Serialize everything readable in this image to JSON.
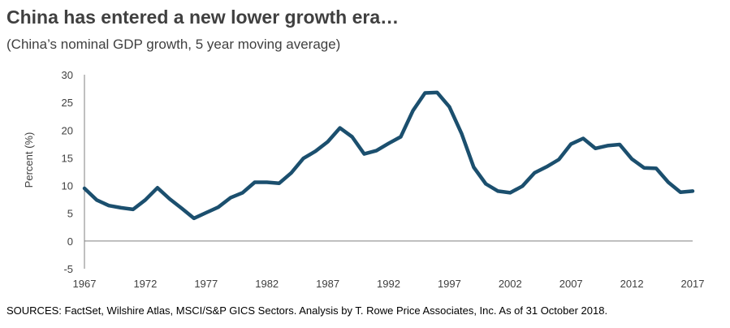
{
  "title": "China has entered a new lower growth era…",
  "subtitle": "(China’s nominal GDP growth, 5 year moving average)",
  "source": "SOURCES: FactSet, Wilshire Atlas, MSCI/S&P GICS Sectors. Analysis by T. Rowe Price Associates, Inc. As of 31 October 2018.",
  "chart_data": {
    "type": "line",
    "title": "China has entered a new lower growth era…",
    "subtitle": "(China’s nominal GDP growth, 5 year moving average)",
    "ylabel": "Percent (%)",
    "xlabel": "",
    "xlim": [
      1967,
      2017
    ],
    "ylim": [
      -5,
      30
    ],
    "y_ticks": [
      "-5",
      "0",
      "5",
      "10",
      "15",
      "20",
      "25",
      "30"
    ],
    "x_ticks": [
      "1967",
      "1972",
      "1977",
      "1982",
      "1987",
      "1992",
      "1997",
      "2002",
      "2007",
      "2012",
      "2017"
    ],
    "grid": false,
    "line_color": "#1b4f6e",
    "series": [
      {
        "x": [
          1967,
          1968,
          1969,
          1970,
          1971,
          1972,
          1973,
          1974,
          1975,
          1976,
          1977,
          1978,
          1979,
          1980,
          1981,
          1982,
          1983,
          1984,
          1985,
          1986,
          1987,
          1988,
          1989,
          1990,
          1991,
          1992,
          1993,
          1994,
          1995,
          1996,
          1997,
          1998,
          1999,
          2000,
          2001,
          2002,
          2003,
          2004,
          2005,
          2006,
          2007,
          2008,
          2009,
          2010,
          2011,
          2012,
          2013,
          2014,
          2015,
          2016,
          2017
        ],
        "values": [
          9.5,
          7.4,
          6.4,
          6.0,
          5.7,
          7.4,
          9.6,
          7.6,
          5.9,
          4.1,
          5.1,
          6.1,
          7.8,
          8.7,
          10.6,
          10.6,
          10.4,
          12.3,
          14.9,
          16.2,
          17.9,
          20.4,
          18.8,
          15.7,
          16.3,
          17.6,
          18.8,
          23.5,
          26.7,
          26.8,
          24.2,
          19.4,
          13.3,
          10.3,
          9.0,
          8.7,
          9.9,
          12.3,
          13.4,
          14.7,
          17.5,
          18.5,
          16.7,
          17.2,
          17.4,
          14.8,
          13.2,
          13.1,
          10.6,
          8.8,
          9.0
        ]
      }
    ]
  }
}
